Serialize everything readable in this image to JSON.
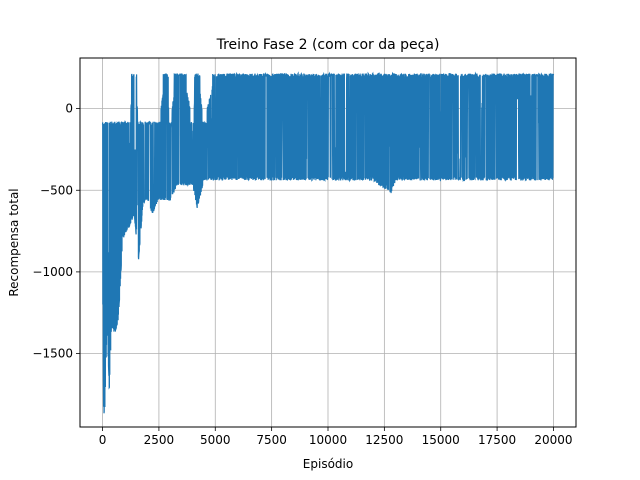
{
  "chart_data": {
    "type": "line",
    "title": "Treino Fase 2 (com cor da peça)",
    "xlabel": "Episódio",
    "ylabel": "Recompensa total",
    "xlim": [
      -1000,
      21000
    ],
    "ylim": [
      -1950,
      310
    ],
    "xticks": [
      0,
      2500,
      5000,
      7500,
      10000,
      12500,
      15000,
      17500,
      20000
    ],
    "xtick_labels": [
      "0",
      "2500",
      "5000",
      "7500",
      "10000",
      "12500",
      "15000",
      "17500",
      "20000"
    ],
    "yticks": [
      -1500,
      -1000,
      -500,
      0
    ],
    "ytick_labels": [
      "−1500",
      "−1000",
      "−500",
      "0"
    ],
    "grid": true,
    "line_color": "#1f77b4",
    "series": [
      {
        "name": "",
        "envelope": {
          "episodes": [
            0,
            50,
            100,
            200,
            300,
            400,
            500,
            600,
            700,
            800,
            900,
            1000,
            1200,
            1400,
            1600,
            1800,
            2000,
            2200,
            2500,
            2800,
            3000,
            3300,
            3600,
            4000,
            4200,
            4500,
            5000,
            5500,
            6000,
            6500,
            7000,
            8000,
            9000,
            10000,
            11000,
            12000,
            12800,
            13000,
            14000,
            15000,
            16000,
            16800,
            17000,
            18000,
            19000,
            20000
          ],
          "upper": [
            -80,
            -80,
            -80,
            -80,
            -80,
            -80,
            -80,
            -80,
            -80,
            -80,
            -80,
            -80,
            -80,
            215,
            -80,
            -80,
            -80,
            -80,
            -80,
            215,
            -80,
            215,
            215,
            -80,
            215,
            -80,
            215,
            215,
            215,
            215,
            215,
            215,
            215,
            215,
            215,
            215,
            215,
            215,
            215,
            215,
            215,
            215,
            215,
            215,
            215,
            215
          ],
          "lower": [
            -900,
            -1870,
            -1860,
            -1330,
            -1730,
            -1320,
            -1380,
            -1360,
            -1290,
            -1060,
            -800,
            -780,
            -720,
            -650,
            -930,
            -580,
            -560,
            -650,
            -560,
            -560,
            -570,
            -480,
            -470,
            -470,
            -620,
            -440,
            -440,
            -440,
            -440,
            -440,
            -440,
            -440,
            -440,
            -440,
            -440,
            -440,
            -520,
            -440,
            -440,
            -440,
            -440,
            -440,
            -440,
            -440,
            -440,
            -440
          ]
        }
      }
    ]
  }
}
